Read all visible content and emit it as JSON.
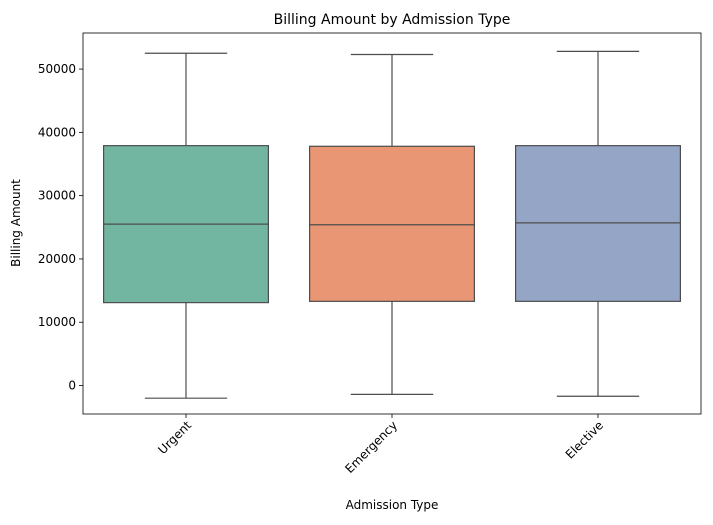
{
  "chart_data": {
    "type": "box",
    "title": "Billing Amount by Admission Type",
    "xlabel": "Admission Type",
    "ylabel": "Billing Amount",
    "ylim": [
      -4500,
      55700
    ],
    "yticks": [
      0,
      10000,
      20000,
      30000,
      40000,
      50000
    ],
    "categories": [
      "Urgent",
      "Emergency",
      "Elective"
    ],
    "colors": [
      "#72b6a1",
      "#e99675",
      "#95a5c6"
    ],
    "boxes": [
      {
        "category": "Urgent",
        "whisker_low": -2000,
        "q1": 13100,
        "median": 25500,
        "q3": 37900,
        "whisker_high": 52500
      },
      {
        "category": "Emergency",
        "whisker_low": -1400,
        "q1": 13300,
        "median": 25400,
        "q3": 37800,
        "whisker_high": 52300
      },
      {
        "category": "Elective",
        "whisker_low": -1700,
        "q1": 13300,
        "median": 25700,
        "q3": 37900,
        "whisker_high": 52800
      }
    ],
    "grid": false,
    "legend": "none",
    "xtick_rotation": 45
  }
}
